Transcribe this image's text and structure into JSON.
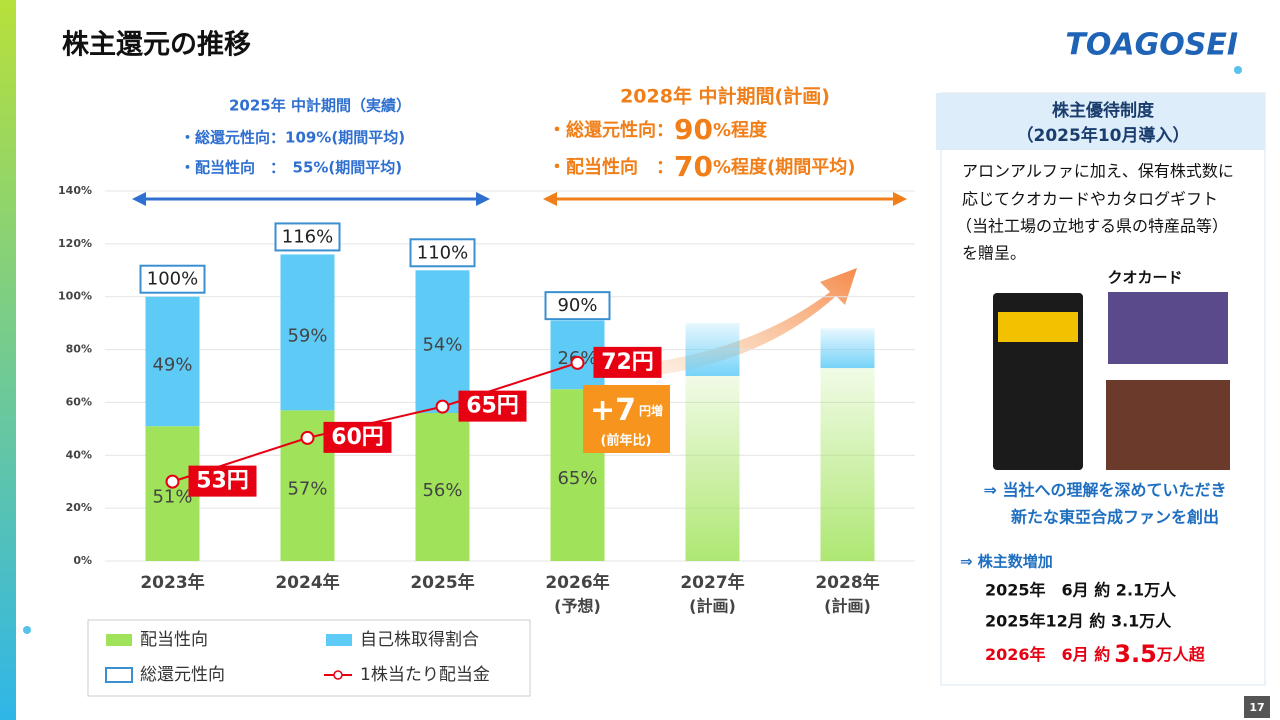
{
  "header": {
    "title": "株主還元の推移",
    "logo": "TOAGOSEI",
    "page": "17"
  },
  "periods": {
    "actual": {
      "title": "2025年 中計期間（実績）",
      "lines": [
        "・総還元性向：109%(期間平均)",
        "・配当性向　：　55%(期間平均)"
      ]
    },
    "plan": {
      "title": "2028年 中計期間(計画)",
      "lines": [
        [
          "・総還元性向：",
          "90",
          "%程度"
        ],
        [
          "・配当性向　：",
          "70",
          "%程度(期間平均)"
        ]
      ]
    }
  },
  "chart_data": {
    "type": "bar",
    "stacked": true,
    "categories": [
      "2023年",
      "2024年",
      "2025年",
      "2026年",
      "2027年",
      "2028年"
    ],
    "category_notes": [
      null,
      null,
      null,
      "(予想)",
      "(計画)",
      "(計画)"
    ],
    "series": [
      {
        "name": "配当性向",
        "color": "#a0e35a",
        "values": [
          51,
          57,
          56,
          65,
          70,
          73
        ],
        "value_labels": [
          "51%",
          "57%",
          "56%",
          "65%",
          null,
          null
        ]
      },
      {
        "name": "自己株取得割合",
        "color": "#5ecbf7",
        "values": [
          49,
          59,
          54,
          26,
          20,
          15
        ],
        "value_labels": [
          "49%",
          "59%",
          "54%",
          "26%",
          null,
          null
        ]
      },
      {
        "name": "総還元性向",
        "type": "outline",
        "color": "#3a8fd0",
        "values": [
          100,
          116,
          110,
          90,
          null,
          null
        ],
        "value_labels": [
          "100%",
          "116%",
          "110%",
          "90%",
          null,
          null
        ]
      },
      {
        "name": "1株当たり配当金",
        "type": "line",
        "axis": "y2",
        "color": "#e60012",
        "values": [
          53,
          60,
          65,
          72,
          null,
          null
        ],
        "value_labels": [
          "53円",
          "60円",
          "65円",
          "72円",
          null,
          null
        ]
      }
    ],
    "ylim": [
      0,
      140
    ],
    "yticks": [
      {
        "value": 0,
        "label": "0%"
      },
      {
        "value": 20,
        "label": "20%"
      },
      {
        "value": 40,
        "label": "40%"
      },
      {
        "value": 60,
        "label": "60%"
      },
      {
        "value": 80,
        "label": "80%"
      },
      {
        "value": 100,
        "label": "100%"
      },
      {
        "value": 120,
        "label": "120%"
      },
      {
        "value": 140,
        "label": "140%"
      }
    ],
    "y2lim": [
      40.3,
      99.5
    ],
    "grid": true,
    "annotations": {
      "increase": [
        "+7",
        "円増",
        "(前年比)"
      ]
    }
  },
  "panel": {
    "title": "株主優待制度",
    "subtitle": "（2025年10月導入）",
    "text": [
      "アロンアルファに加え、保有株式数に",
      "応じてクオカードやカタログギフト",
      "（当社工場の立地する県の特産品等）",
      "を贈呈。"
    ],
    "card_label": "クオカード",
    "result": [
      "⇒ 当社への理解を深めていただき",
      "新たな東亞合成ファンを創出"
    ],
    "growth_title": "⇒ 株主数増加",
    "growth": [
      "2025年　6月 約 2.1万人",
      "2025年12月 約 3.1万人"
    ],
    "growth_target": [
      "2026年　6月 約",
      "3.5",
      "万人超"
    ]
  }
}
